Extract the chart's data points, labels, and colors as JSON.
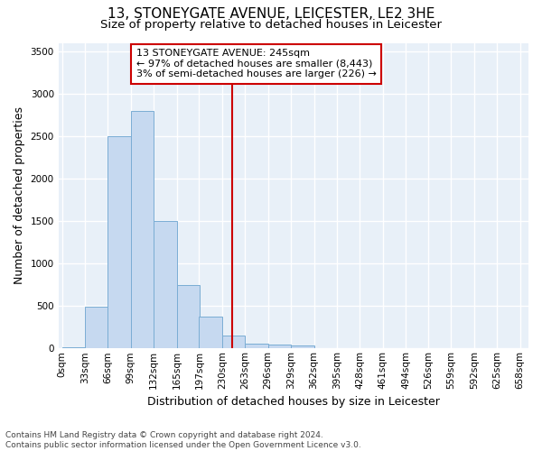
{
  "title": "13, STONEYGATE AVENUE, LEICESTER, LE2 3HE",
  "subtitle": "Size of property relative to detached houses in Leicester",
  "xlabel": "Distribution of detached houses by size in Leicester",
  "ylabel": "Number of detached properties",
  "annotation_line1": "13 STONEYGATE AVENUE: 245sqm",
  "annotation_line2": "← 97% of detached houses are smaller (8,443)",
  "annotation_line3": "3% of semi-detached houses are larger (226) →",
  "footer1": "Contains HM Land Registry data © Crown copyright and database right 2024.",
  "footer2": "Contains public sector information licensed under the Open Government Licence v3.0.",
  "bar_left_edges": [
    0,
    33,
    66,
    99,
    132,
    165,
    197,
    230,
    263,
    296,
    329,
    362,
    395,
    428,
    461,
    494,
    526,
    559,
    592,
    625
  ],
  "bar_heights": [
    10,
    490,
    2500,
    2800,
    1500,
    750,
    380,
    150,
    60,
    50,
    30,
    0,
    0,
    0,
    0,
    0,
    0,
    0,
    0,
    0
  ],
  "bin_width": 33,
  "bar_color": "#c6d9f0",
  "bar_edge_color": "#7aadd4",
  "vline_x": 245,
  "vline_color": "#cc0000",
  "ylim": [
    0,
    3600
  ],
  "xlim": [
    -5,
    670
  ],
  "yticks": [
    0,
    500,
    1000,
    1500,
    2000,
    2500,
    3000,
    3500
  ],
  "xtick_labels": [
    "0sqm",
    "33sqm",
    "66sqm",
    "99sqm",
    "132sqm",
    "165sqm",
    "197sqm",
    "230sqm",
    "263sqm",
    "296sqm",
    "329sqm",
    "362sqm",
    "395sqm",
    "428sqm",
    "461sqm",
    "494sqm",
    "526sqm",
    "559sqm",
    "592sqm",
    "625sqm",
    "658sqm"
  ],
  "xtick_positions": [
    0,
    33,
    66,
    99,
    132,
    165,
    197,
    230,
    263,
    296,
    329,
    362,
    395,
    428,
    461,
    494,
    526,
    559,
    592,
    625,
    658
  ],
  "background_color": "#e8f0f8",
  "grid_color": "#ffffff",
  "title_fontsize": 11,
  "subtitle_fontsize": 9.5,
  "axis_label_fontsize": 9,
  "tick_fontsize": 7.5,
  "annotation_fontsize": 8,
  "footer_fontsize": 6.5
}
